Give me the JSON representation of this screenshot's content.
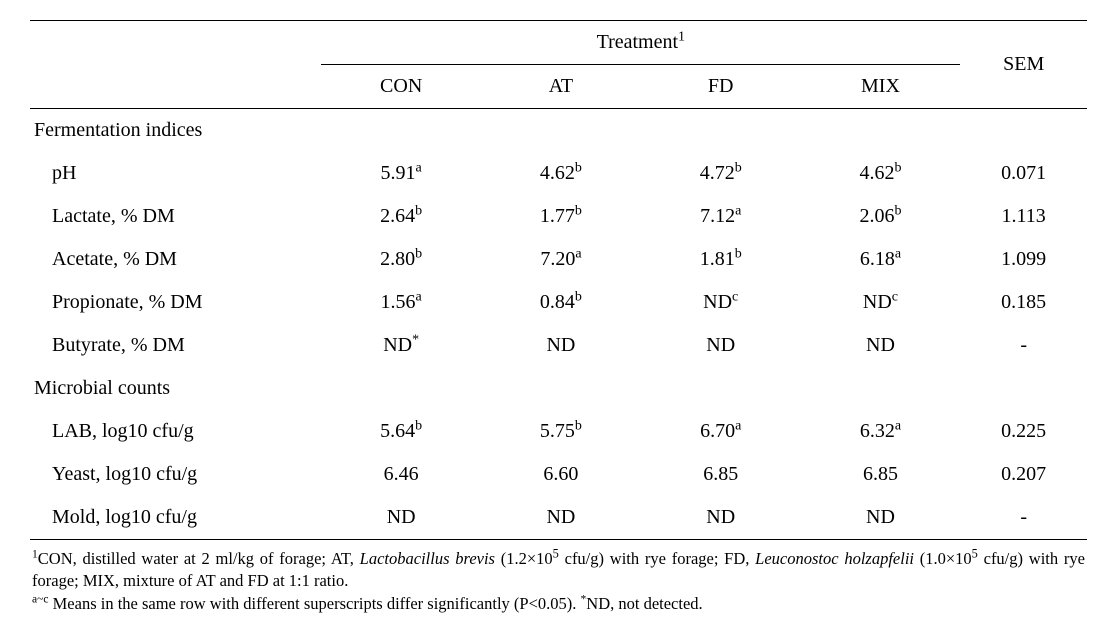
{
  "header": {
    "treatment_label": "Treatment",
    "treatment_sup": "1",
    "sem_label": "SEM",
    "columns": [
      "CON",
      "AT",
      "FD",
      "MIX"
    ]
  },
  "sections": [
    {
      "title": "Fermentation indices",
      "rows": [
        {
          "label": "pH",
          "values": [
            {
              "v": "5.91",
              "sup": "a"
            },
            {
              "v": "4.62",
              "sup": "b"
            },
            {
              "v": "4.72",
              "sup": "b"
            },
            {
              "v": "4.62",
              "sup": "b"
            }
          ],
          "sem": "0.071"
        },
        {
          "label": "Lactate, % DM",
          "values": [
            {
              "v": "2.64",
              "sup": "b"
            },
            {
              "v": "1.77",
              "sup": "b"
            },
            {
              "v": "7.12",
              "sup": "a"
            },
            {
              "v": "2.06",
              "sup": "b"
            }
          ],
          "sem": "1.113"
        },
        {
          "label": "Acetate, % DM",
          "values": [
            {
              "v": "2.80",
              "sup": "b"
            },
            {
              "v": "7.20",
              "sup": "a"
            },
            {
              "v": "1.81",
              "sup": "b"
            },
            {
              "v": "6.18",
              "sup": "a"
            }
          ],
          "sem": "1.099"
        },
        {
          "label": "Propionate, % DM",
          "values": [
            {
              "v": "1.56",
              "sup": "a"
            },
            {
              "v": "0.84",
              "sup": "b"
            },
            {
              "v": "ND",
              "sup": "c"
            },
            {
              "v": "ND",
              "sup": "c"
            }
          ],
          "sem": "0.185"
        },
        {
          "label": "Butyrate, % DM",
          "values": [
            {
              "v": "ND",
              "sup": "*"
            },
            {
              "v": "ND",
              "sup": ""
            },
            {
              "v": "ND",
              "sup": ""
            },
            {
              "v": "ND",
              "sup": ""
            }
          ],
          "sem": "-"
        }
      ]
    },
    {
      "title": "Microbial counts",
      "rows": [
        {
          "label": "LAB, log10 cfu/g",
          "values": [
            {
              "v": "5.64",
              "sup": "b"
            },
            {
              "v": "5.75",
              "sup": "b"
            },
            {
              "v": "6.70",
              "sup": "a"
            },
            {
              "v": "6.32",
              "sup": "a"
            }
          ],
          "sem": "0.225"
        },
        {
          "label": "Yeast, log10 cfu/g",
          "values": [
            {
              "v": "6.46",
              "sup": ""
            },
            {
              "v": "6.60",
              "sup": ""
            },
            {
              "v": "6.85",
              "sup": ""
            },
            {
              "v": "6.85",
              "sup": ""
            }
          ],
          "sem": "0.207"
        },
        {
          "label": "Mold, log10 cfu/g",
          "values": [
            {
              "v": "ND",
              "sup": ""
            },
            {
              "v": "ND",
              "sup": ""
            },
            {
              "v": "ND",
              "sup": ""
            },
            {
              "v": "ND",
              "sup": ""
            }
          ],
          "sem": "-"
        }
      ]
    }
  ],
  "footnotes": {
    "f1_sup": "1",
    "f1_pre": "CON, distilled water at 2 ml/kg of forage; AT, ",
    "f1_it1": "Lactobacillus brevis",
    "f1_mid1": " (1.2×10",
    "f1_exp1": "5",
    "f1_mid2": " cfu/g) with rye forage; FD, ",
    "f1_it2": "Leuconostoc holzapfelii",
    "f1_mid3": " (1.0×10",
    "f1_exp2": "5",
    "f1_end": " cfu/g) with rye forage; MIX, mixture of AT and FD at 1:1 ratio.",
    "f2_sup": "a~c",
    "f2_text": " Means in the same row with different superscripts differ significantly (P<0.05). ",
    "f2_sup2": "*",
    "f2_end": "ND, not detected."
  }
}
